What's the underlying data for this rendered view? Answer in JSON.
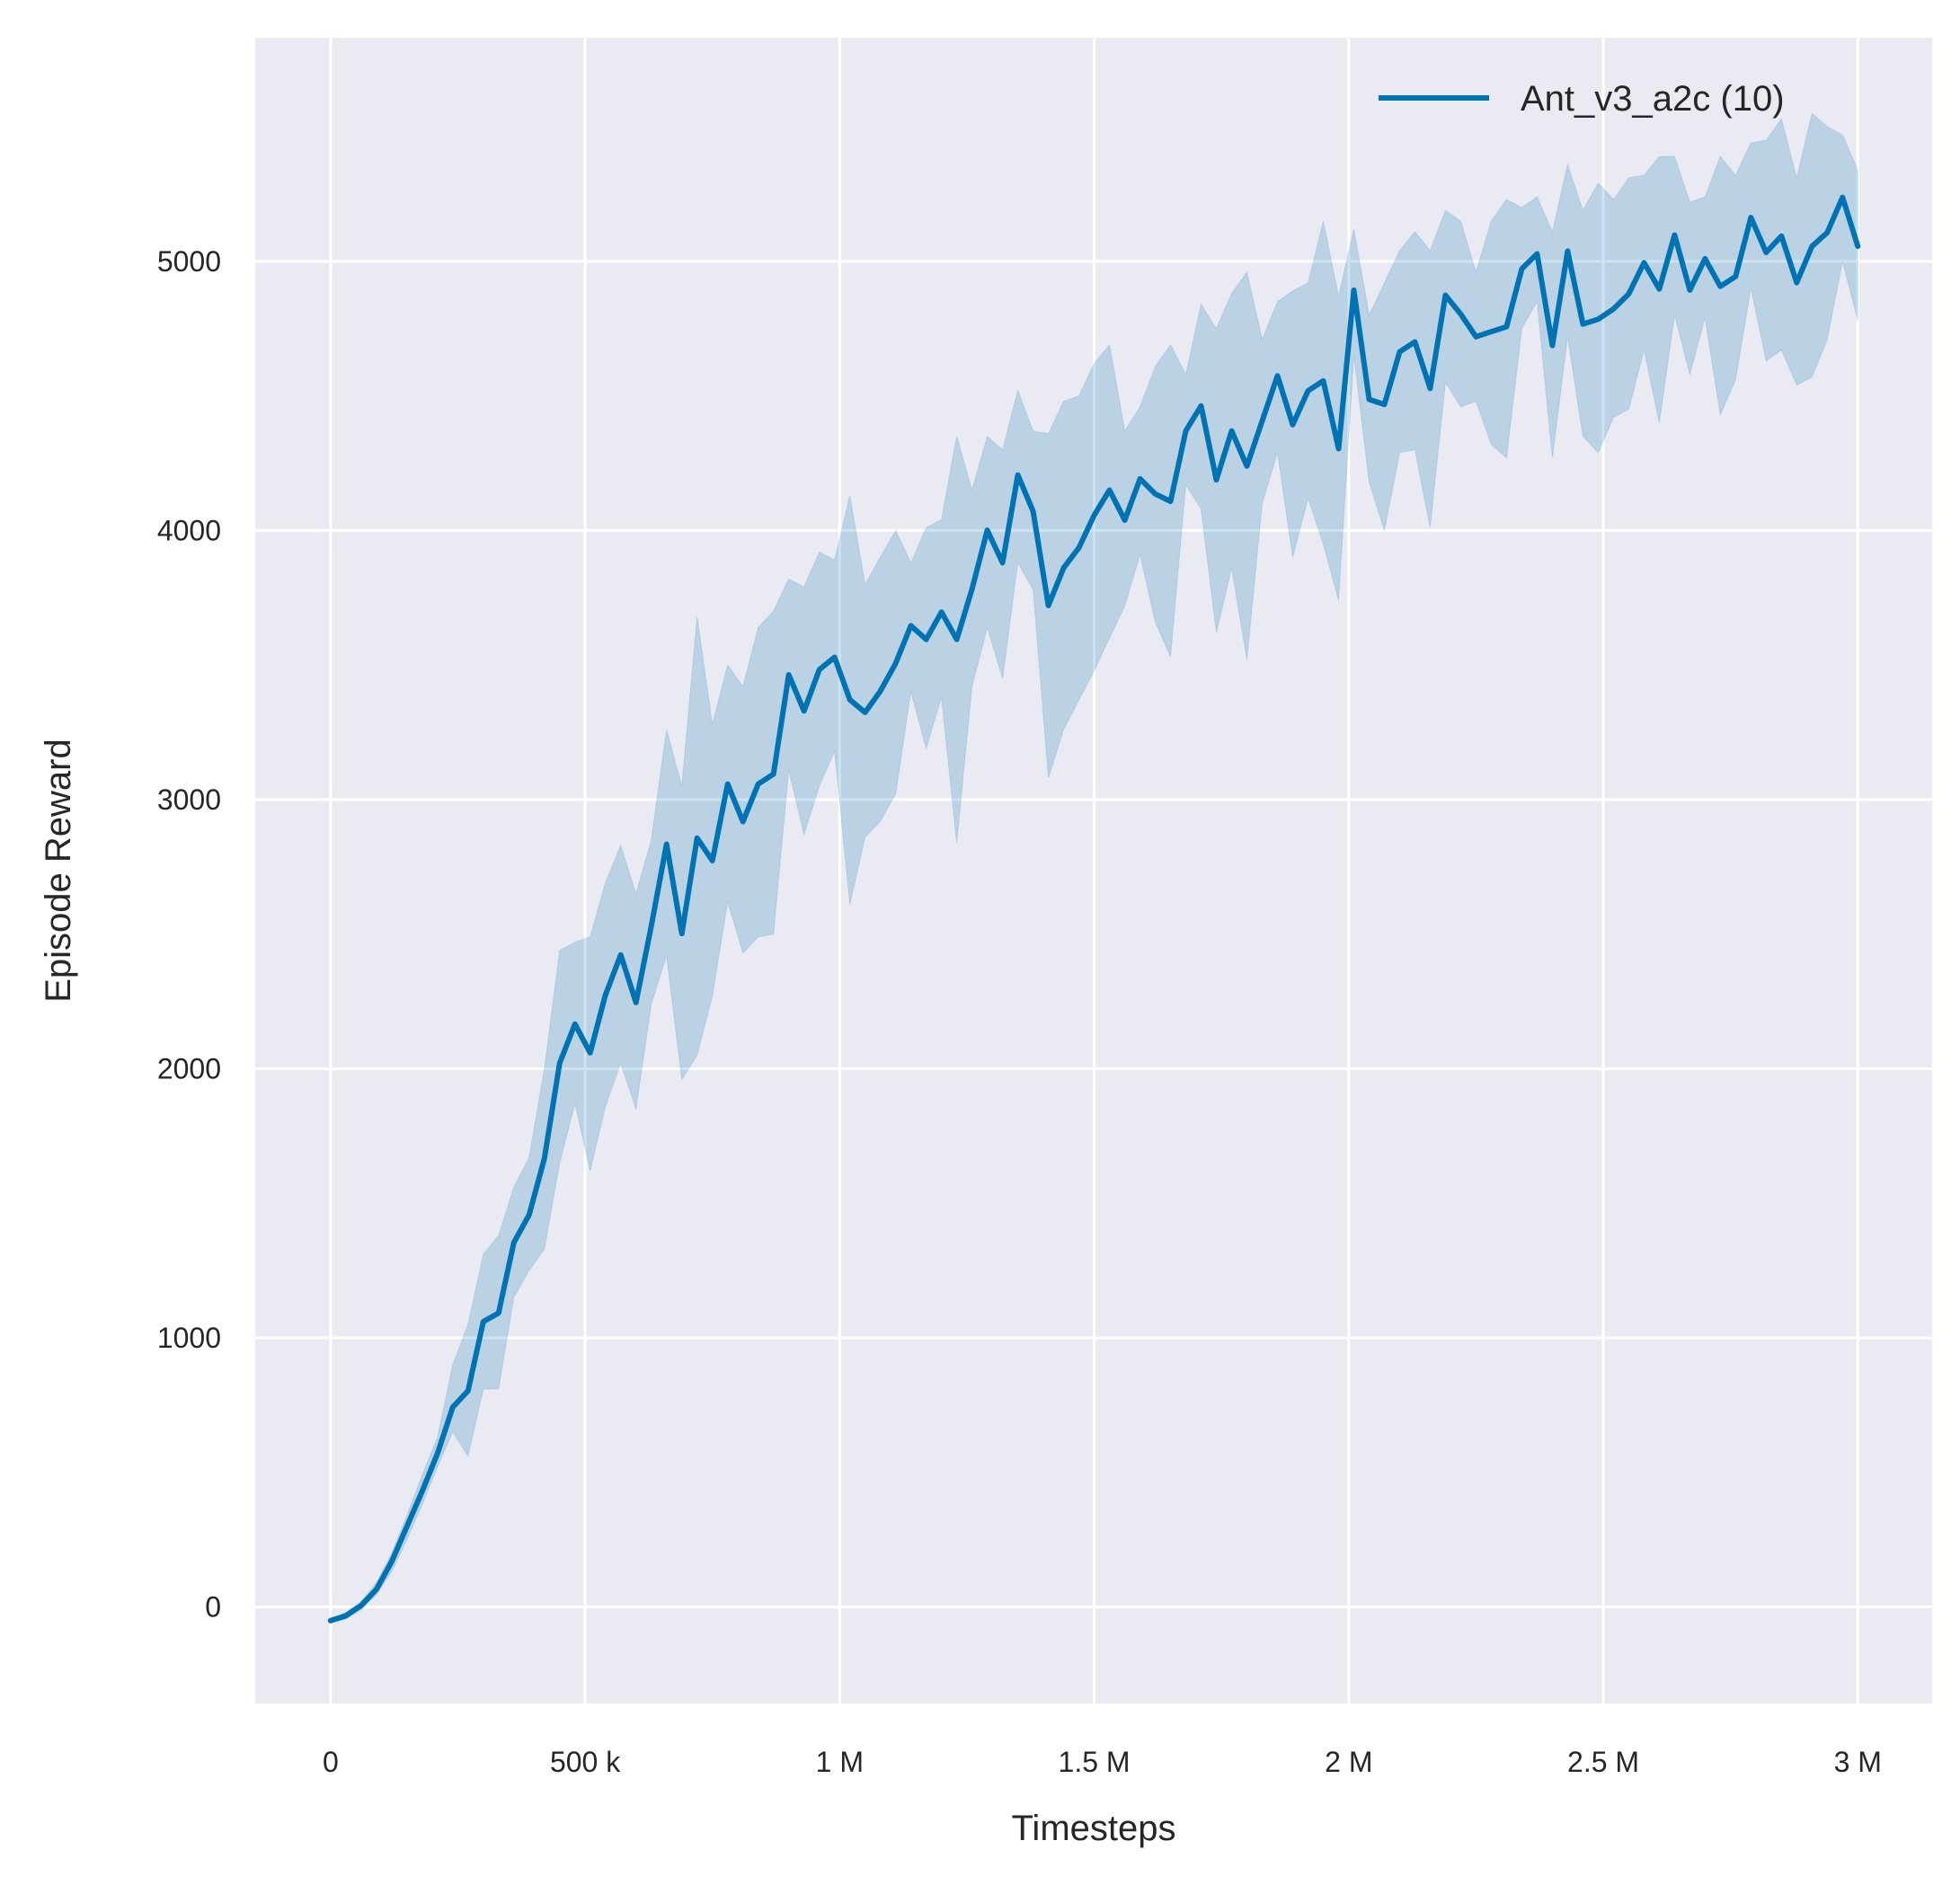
{
  "chart_data": {
    "type": "line",
    "title": "",
    "xlabel": "Timesteps",
    "ylabel": "Episode Reward",
    "x_unit_note_as_printed": "M",
    "xlim": [
      -0.148,
      3.146
    ],
    "ylim": [
      -359,
      5831
    ],
    "grid": true,
    "legend_placement": "top-right",
    "colors": {
      "background": "#eaeaf2",
      "grid": "#ffffff",
      "line": "#0173b2",
      "band": "#0173b2"
    },
    "x_ticks": [
      {
        "value": 0,
        "label": "0"
      },
      {
        "value": 0.5,
        "label": "500 k"
      },
      {
        "value": 1,
        "label": "1 M"
      },
      {
        "value": 1.5,
        "label": "1.5 M"
      },
      {
        "value": 2,
        "label": "2 M"
      },
      {
        "value": 2.5,
        "label": "2.5 M"
      },
      {
        "value": 3,
        "label": "3 M"
      }
    ],
    "y_ticks": [
      {
        "value": 0,
        "label": "0"
      },
      {
        "value": 1000,
        "label": "1000"
      },
      {
        "value": 2000,
        "label": "2000"
      },
      {
        "value": 3000,
        "label": "3000"
      },
      {
        "value": 4000,
        "label": "4000"
      },
      {
        "value": 5000,
        "label": "5000"
      }
    ],
    "series": [
      {
        "name": "Ant_v3_a2c (10)",
        "x_millions": [
          0,
          0.03,
          0.06,
          0.09,
          0.12,
          0.15,
          0.18,
          0.21,
          0.24,
          0.27,
          0.3,
          0.33,
          0.36,
          0.39,
          0.42,
          0.45,
          0.48,
          0.51,
          0.54,
          0.57,
          0.6,
          0.63,
          0.66,
          0.69,
          0.72,
          0.75,
          0.78,
          0.81,
          0.84,
          0.87,
          0.9,
          0.93,
          0.96,
          0.99,
          1.02,
          1.05,
          1.08,
          1.11,
          1.14,
          1.17,
          1.2,
          1.23,
          1.26,
          1.29,
          1.32,
          1.35,
          1.38,
          1.41,
          1.44,
          1.47,
          1.5,
          1.53,
          1.56,
          1.59,
          1.62,
          1.65,
          1.68,
          1.71,
          1.74,
          1.77,
          1.8,
          1.83,
          1.86,
          1.89,
          1.92,
          1.95,
          1.98,
          2.01,
          2.04,
          2.07,
          2.1,
          2.13,
          2.16,
          2.19,
          2.22,
          2.25,
          2.28,
          2.31,
          2.34,
          2.37,
          2.4,
          2.43,
          2.46,
          2.49,
          2.52,
          2.55,
          2.58,
          2.61,
          2.64,
          2.67,
          2.7,
          2.73,
          2.76,
          2.79,
          2.82,
          2.85,
          2.88,
          2.91,
          2.94,
          2.97,
          3.0
        ],
        "mean": [
          -51,
          -33,
          5,
          65,
          168,
          299,
          430,
          570,
          742,
          803,
          1060,
          1092,
          1354,
          1457,
          1667,
          2021,
          2166,
          2059,
          2274,
          2423,
          2246,
          2530,
          2834,
          2502,
          2857,
          2773,
          3058,
          2918,
          3058,
          3095,
          3464,
          3329,
          3483,
          3529,
          3371,
          3324,
          3403,
          3506,
          3646,
          3595,
          3697,
          3595,
          3782,
          4001,
          3880,
          4206,
          4071,
          3721,
          3861,
          3936,
          4057,
          4150,
          4038,
          4192,
          4136,
          4108,
          4370,
          4463,
          4188,
          4370,
          4239,
          4407,
          4575,
          4393,
          4519,
          4556,
          4304,
          4893,
          4487,
          4468,
          4664,
          4701,
          4528,
          4874,
          4804,
          4720,
          4739,
          4757,
          4972,
          5028,
          4687,
          5038,
          4767,
          4785,
          4823,
          4879,
          4995,
          4897,
          5098,
          4893,
          5010,
          4907,
          4944,
          5163,
          5033,
          5094,
          4921,
          5056,
          5107,
          5238,
          5056
        ],
        "lower": [
          -60,
          -45,
          -10,
          45,
          130,
          250,
          380,
          520,
          650,
          560,
          810,
          810,
          1150,
          1250,
          1330,
          1650,
          1870,
          1620,
          1860,
          2020,
          1850,
          2240,
          2420,
          1960,
          2050,
          2270,
          2620,
          2430,
          2490,
          2500,
          3110,
          2870,
          3050,
          3180,
          2610,
          2860,
          2920,
          3020,
          3400,
          3190,
          3380,
          2840,
          3420,
          3640,
          3450,
          3880,
          3780,
          3080,
          3260,
          3370,
          3480,
          3600,
          3720,
          3910,
          3660,
          3530,
          4170,
          4080,
          3620,
          3860,
          3520,
          4100,
          4290,
          3900,
          4120,
          3950,
          3740,
          4650,
          4180,
          4000,
          4290,
          4300,
          4010,
          4550,
          4460,
          4480,
          4320,
          4270,
          4750,
          4850,
          4270,
          4720,
          4350,
          4290,
          4420,
          4450,
          4670,
          4400,
          4800,
          4580,
          4790,
          4430,
          4560,
          4900,
          4630,
          4670,
          4540,
          4570,
          4710,
          5000,
          4780
        ],
        "upper": [
          -45,
          -20,
          20,
          90,
          200,
          340,
          490,
          630,
          900,
          1050,
          1310,
          1380,
          1560,
          1670,
          2000,
          2440,
          2470,
          2490,
          2690,
          2830,
          2650,
          2850,
          3260,
          3050,
          3680,
          3280,
          3500,
          3420,
          3640,
          3700,
          3820,
          3790,
          3920,
          3890,
          4130,
          3800,
          3900,
          4000,
          3880,
          4010,
          4040,
          4350,
          4150,
          4350,
          4300,
          4520,
          4370,
          4360,
          4480,
          4500,
          4620,
          4690,
          4370,
          4460,
          4610,
          4690,
          4580,
          4840,
          4750,
          4880,
          4960,
          4710,
          4850,
          4890,
          4920,
          5150,
          4870,
          5120,
          4800,
          4920,
          5040,
          5110,
          5040,
          5190,
          5150,
          4960,
          5150,
          5230,
          5200,
          5240,
          5110,
          5360,
          5190,
          5290,
          5230,
          5310,
          5320,
          5390,
          5390,
          5220,
          5240,
          5390,
          5320,
          5440,
          5450,
          5530,
          5310,
          5550,
          5500,
          5470,
          5340
        ]
      }
    ]
  }
}
